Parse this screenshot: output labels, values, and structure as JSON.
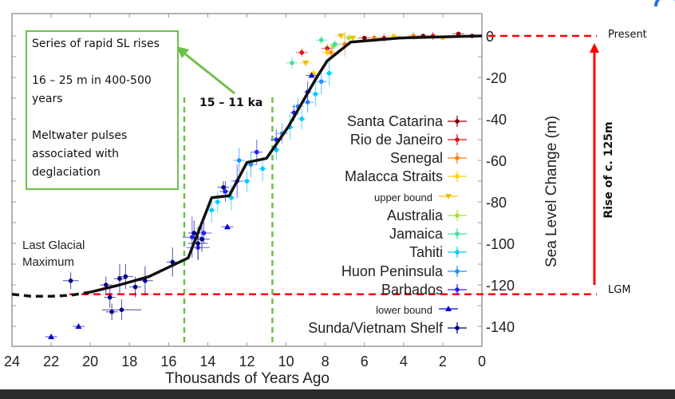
{
  "chart_data": {
    "type": "scatter",
    "xlabel": "Thousands of Years Ago",
    "ylabel": "Sea Level Change (m)",
    "xlim": [
      24,
      0
    ],
    "ylim": [
      -150,
      11
    ],
    "x_ticks": [
      24,
      22,
      20,
      18,
      16,
      14,
      12,
      10,
      8,
      6,
      4,
      2,
      0
    ],
    "y_ticks": [
      0,
      -20,
      -40,
      -60,
      -80,
      -100,
      -120,
      -140
    ],
    "grid": false,
    "legend_placement": "right-inside",
    "trend_line": {
      "dashed": [
        [
          24,
          -124.5
        ],
        [
          23,
          -125.5
        ],
        [
          22,
          -125.5
        ],
        [
          21,
          -125
        ],
        [
          20,
          -123.5
        ]
      ],
      "solid": [
        [
          20,
          -123.5
        ],
        [
          18.5,
          -120
        ],
        [
          17,
          -116
        ],
        [
          15,
          -107
        ],
        [
          13.8,
          -78
        ],
        [
          12.9,
          -77
        ],
        [
          12,
          -61
        ],
        [
          11,
          -59
        ],
        [
          9.9,
          -44
        ],
        [
          8.5,
          -21
        ],
        [
          7.9,
          -12
        ],
        [
          6.7,
          -3
        ],
        [
          4.2,
          -1
        ],
        [
          0,
          0
        ]
      ]
    },
    "series": [
      {
        "name": "Santa Catarina",
        "color": "#8b0000",
        "marker": "circle",
        "points": [
          [
            6.0,
            -1,
            0.3,
            1
          ],
          [
            3.0,
            0,
            0.3,
            1
          ],
          [
            1.2,
            1,
            0.3,
            1
          ],
          [
            0.5,
            0,
            0.3,
            1
          ]
        ]
      },
      {
        "name": "Rio de Janeiro",
        "color": "#e01010",
        "marker": "circle",
        "points": [
          [
            9.2,
            -8,
            0.3,
            2
          ],
          [
            7.9,
            -6,
            0.3,
            2
          ],
          [
            5.0,
            -1,
            0.3,
            2
          ],
          [
            2.5,
            0,
            0.3,
            2
          ]
        ]
      },
      {
        "name": "Senegal",
        "color": "#ff7f0e",
        "marker": "circle",
        "points": [
          [
            7.7,
            -8,
            0.3,
            2
          ],
          [
            7.0,
            -4,
            0.3,
            6
          ],
          [
            5.5,
            -1,
            0.3,
            2
          ],
          [
            3.5,
            0,
            0.3,
            2
          ]
        ]
      },
      {
        "name": "Malacca Straits",
        "color": "#ffd000",
        "marker": "circle",
        "points": [
          [
            8.6,
            -18,
            0.3,
            2
          ],
          [
            7.9,
            -8,
            0.3,
            2
          ],
          [
            4.5,
            0,
            0.3,
            1
          ],
          [
            2.0,
            -1,
            0.3,
            1
          ]
        ]
      },
      {
        "name": "upper bound",
        "color": "#f0c000",
        "marker": "triangle-down",
        "small": true,
        "points": [
          [
            7.2,
            0,
            0.3,
            0
          ],
          [
            6.6,
            -1,
            0.3,
            0
          ],
          [
            9.0,
            -13,
            0.3,
            0
          ]
        ]
      },
      {
        "name": "Australia",
        "color": "#a6e22e",
        "marker": "circle",
        "points": [
          [
            7.6,
            -5,
            0.3,
            2
          ],
          [
            6.8,
            -1,
            0.3,
            2
          ]
        ]
      },
      {
        "name": "Jamaica",
        "color": "#40e0a0",
        "marker": "circle",
        "points": [
          [
            9.7,
            -13,
            0.3,
            3
          ],
          [
            8.2,
            -2,
            0.3,
            2
          ],
          [
            7.5,
            -4,
            0.3,
            2
          ]
        ]
      },
      {
        "name": "Tahiti",
        "color": "#00ccff",
        "marker": "circle",
        "points": [
          [
            13.8,
            -84,
            0.2,
            6
          ],
          [
            13.5,
            -80,
            0.2,
            5
          ],
          [
            12.8,
            -78,
            0.2,
            6
          ],
          [
            12.0,
            -70,
            0.2,
            5
          ],
          [
            11.2,
            -64,
            0.2,
            6
          ],
          [
            10.5,
            -55,
            0.2,
            5
          ],
          [
            9.8,
            -44,
            0.2,
            6
          ],
          [
            9.2,
            -40,
            0.2,
            5
          ],
          [
            8.5,
            -28,
            0.2,
            6
          ],
          [
            7.8,
            -18,
            0.2,
            6
          ]
        ]
      },
      {
        "name": "Huon Peninsula",
        "color": "#1e90ff",
        "marker": "circle",
        "points": [
          [
            12.4,
            -60,
            0.3,
            6
          ],
          [
            11.8,
            -62,
            0.3,
            6
          ],
          [
            10.2,
            -47,
            0.3,
            5
          ],
          [
            9.4,
            -34,
            0.3,
            4
          ],
          [
            8.9,
            -32,
            0.3,
            5
          ],
          [
            8.2,
            -22,
            0.3,
            6
          ]
        ]
      },
      {
        "name": "Barbados",
        "color": "#2020ff",
        "marker": "circle",
        "points": [
          [
            14.8,
            -97,
            0.5,
            10
          ],
          [
            14.5,
            -102,
            0.6,
            6
          ],
          [
            14.2,
            -95,
            0.4,
            5
          ],
          [
            13.1,
            -75,
            0.3,
            5
          ],
          [
            12.5,
            -70,
            0.3,
            8
          ],
          [
            11.5,
            -56,
            0.3,
            6
          ],
          [
            10.5,
            -50,
            0.3,
            5
          ],
          [
            9.6,
            -37,
            0.2,
            4
          ],
          [
            8.9,
            -27,
            0.2,
            5
          ]
        ]
      },
      {
        "name": "lower bound",
        "color": "#0000dd",
        "marker": "triangle-up",
        "small": true,
        "points": [
          [
            22,
            -145,
            0.3,
            0
          ],
          [
            20.6,
            -140,
            0.3,
            0
          ],
          [
            13,
            -92,
            0.3,
            0
          ],
          [
            8.7,
            -19,
            0.3,
            0
          ]
        ]
      },
      {
        "name": "Sunda/Vietnam Shelf",
        "color": "#000080",
        "marker": "circle",
        "points": [
          [
            21,
            -118,
            0.4,
            4
          ],
          [
            19.2,
            -120,
            0.3,
            4
          ],
          [
            19,
            -126,
            0.3,
            5
          ],
          [
            18.9,
            -133,
            0.3,
            4
          ],
          [
            18.5,
            -117,
            0.3,
            7
          ],
          [
            18.4,
            -132,
            1,
            5
          ],
          [
            18.2,
            -116,
            0.4,
            6
          ],
          [
            17.7,
            -121,
            0.3,
            5
          ],
          [
            17.2,
            -118,
            0.4,
            7
          ],
          [
            15.8,
            -109,
            0.3,
            7
          ],
          [
            14.7,
            -95,
            0.3,
            6
          ],
          [
            14.5,
            -100,
            0.5,
            8
          ],
          [
            14.3,
            -98,
            0.4,
            6
          ],
          [
            13.2,
            -73,
            0.3,
            3
          ]
        ]
      }
    ],
    "annotations": {
      "lgm_text": [
        "Last Glacial",
        "Maximum"
      ],
      "window_label": "15 – 11 ka",
      "window_lines": [
        15.2,
        10.7
      ],
      "window_color": "#6cc04a",
      "present_label": "Present",
      "lgm_label": "LGM",
      "rise_label": "Rise of c. 125m",
      "present_level": 0,
      "lgm_level": -124.5,
      "reference_color": "#ff0000",
      "note_box": [
        "Series of rapid SL rises",
        "16 – 25 m in 400-500 years",
        "Meltwater pulses associated with deglaciation"
      ]
    }
  }
}
